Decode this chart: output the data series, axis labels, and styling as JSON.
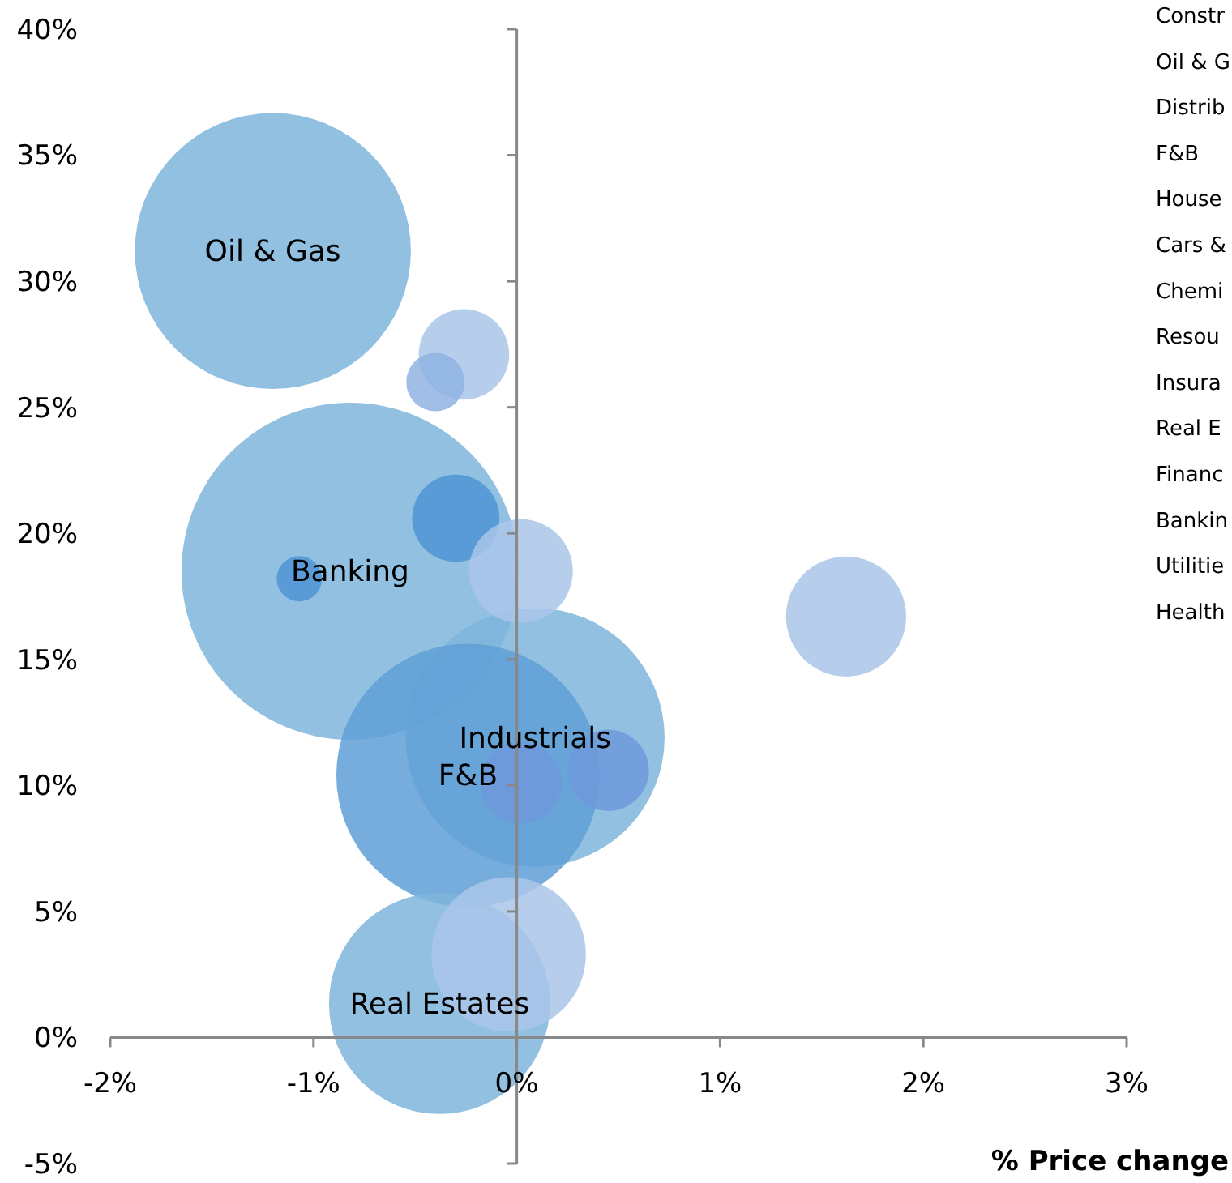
{
  "chart_data": {
    "type": "bubble",
    "xlabel": "% Price change",
    "x": [
      -1.2,
      -0.82,
      0.09,
      -0.24,
      -0.38,
      -0.26,
      -0.4,
      -0.3,
      0.02,
      -1.07,
      1.62,
      0.02,
      0.45,
      -0.04
    ],
    "series": [
      {
        "values": [
          31.2,
          18.5,
          11.9,
          10.4,
          1.35,
          27.1,
          26.0,
          20.6,
          18.5,
          18.2,
          16.7,
          10.1,
          10.6,
          3.3
        ],
        "sizes": [
          0.67,
          1,
          0.59,
          0.61,
          0.43,
          0.072,
          0.03,
          0.067,
          0.095,
          0.018,
          0.127,
          0.058,
          0.058,
          0.21
        ],
        "colors": [
          "#7eb5dc",
          "#7eb5dc",
          "#7eb5dc",
          "#5f9fd6",
          "#7eb5dc",
          "#a9c6e9",
          "#8fb3e2",
          "#4f94d4",
          "#a9c6e9",
          "#4f94d4",
          "#a9c6e9",
          "#6d99dc",
          "#6d99dc",
          "#a9c6e9"
        ]
      }
    ],
    "xlim": [
      -2,
      3
    ],
    "xticks": [
      {
        "value": -2,
        "label": "-2%"
      },
      {
        "value": -1,
        "label": "-1%"
      },
      {
        "value": 0,
        "label": "0%"
      },
      {
        "value": 1,
        "label": "1%"
      },
      {
        "value": 2,
        "label": "2%"
      },
      {
        "value": 3,
        "label": "3%"
      }
    ],
    "ylim": [
      -5,
      40
    ],
    "yticks": [
      {
        "value": -5,
        "label": "-5%"
      },
      {
        "value": 0,
        "label": "0%"
      },
      {
        "value": 5,
        "label": "5%"
      },
      {
        "value": 10,
        "label": "10%"
      },
      {
        "value": 15,
        "label": "15%"
      },
      {
        "value": 20,
        "label": "20%"
      },
      {
        "value": 25,
        "label": "25%"
      },
      {
        "value": 30,
        "label": "30%"
      },
      {
        "value": 35,
        "label": "35%"
      },
      {
        "value": 40,
        "label": "40%"
      }
    ],
    "annotations": [
      {
        "text": "Oil & Gas",
        "x": -1.2,
        "y": 31.2
      },
      {
        "text": "Banking",
        "x": -0.82,
        "y": 18.5
      },
      {
        "text": "Industrials",
        "x": 0.09,
        "y": 11.9
      },
      {
        "text": "F&B",
        "x": -0.24,
        "y": 10.4
      },
      {
        "text": "Real Estates",
        "x": -0.38,
        "y": 1.35
      },
      "Constr",
      "Oil & G",
      "Distrib",
      "F&B",
      "House",
      "Cars &",
      "Chemi",
      "Resou",
      "Insura",
      "Real E",
      "Financ",
      "Bankin",
      "Utilitie",
      "Health"
    ]
  }
}
